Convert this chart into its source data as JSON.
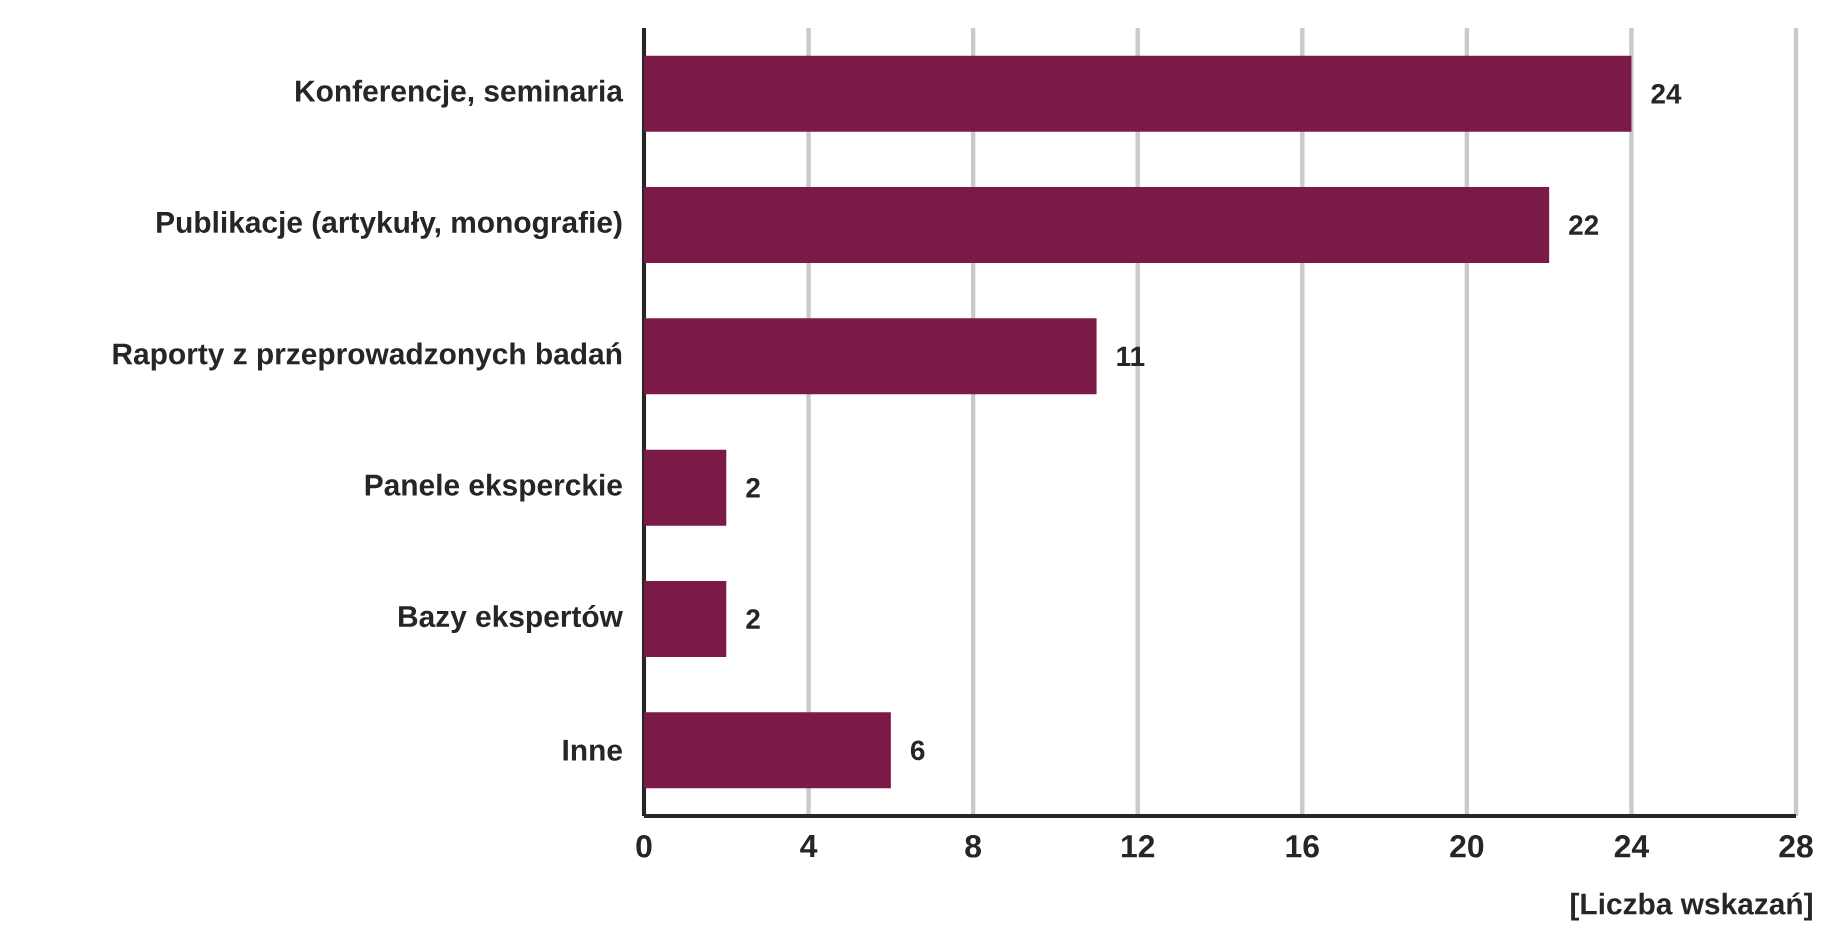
{
  "chart_data": {
    "type": "bar",
    "orientation": "horizontal",
    "xlabel": "[Liczba wskazań]",
    "categories": [
      "Konferencje, seminaria",
      "Publikacje (artykuły, monografie)",
      "Raporty z przeprowadzonych badań",
      "Panele eksperckie",
      "Bazy ekspertów",
      "Inne"
    ],
    "values": [
      24,
      22,
      11,
      2,
      2,
      6
    ],
    "color": "#7b1a47",
    "xlim": [
      0,
      28
    ],
    "xticks": [
      0,
      4,
      8,
      12,
      16,
      20,
      24,
      28
    ],
    "grid": "x",
    "data_labels": true
  }
}
